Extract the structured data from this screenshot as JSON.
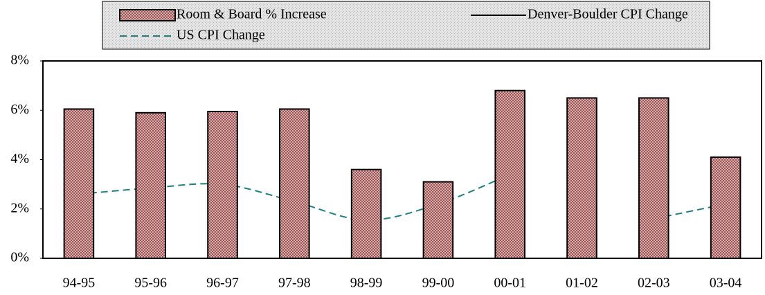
{
  "chart_data": {
    "type": "bar",
    "categories": [
      "94-95",
      "95-96",
      "96-97",
      "97-98",
      "98-99",
      "99-00",
      "00-01",
      "01-02",
      "02-03",
      "03-04"
    ],
    "series": [
      {
        "name": "Room & Board % Increase",
        "type": "bar",
        "color": "#c89494",
        "values": [
          6.05,
          5.9,
          5.95,
          6.05,
          3.6,
          3.1,
          6.8,
          6.5,
          6.5,
          4.1
        ]
      },
      {
        "name": "Denver-Boulder CPI Change",
        "type": "line",
        "color": "#000000",
        "values": [
          null,
          null,
          null,
          null,
          null,
          null,
          null,
          null,
          null,
          null
        ]
      },
      {
        "name": "US CPI Change",
        "type": "line",
        "dashed": true,
        "color": "#1a8080",
        "values": [
          2.6,
          2.85,
          3.0,
          2.3,
          1.55,
          2.2,
          3.4,
          null,
          1.6,
          2.2
        ]
      }
    ],
    "ylim": [
      0,
      8
    ],
    "yticks": [
      {
        "value": 0,
        "label": "0%"
      },
      {
        "value": 2,
        "label": "2%"
      },
      {
        "value": 4,
        "label": "4%"
      },
      {
        "value": 6,
        "label": "6%"
      },
      {
        "value": 8,
        "label": "8%"
      }
    ],
    "legend": "top"
  }
}
